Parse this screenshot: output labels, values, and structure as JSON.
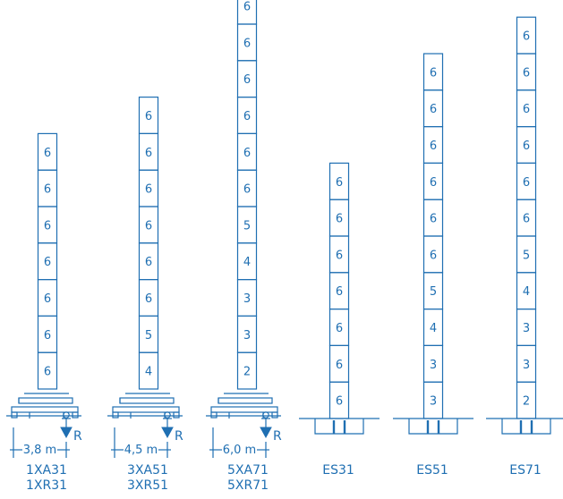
{
  "style": {
    "line_color": "#1f6fb2",
    "background": "#ffffff"
  },
  "towers": [
    {
      "id": "1XA31",
      "names": [
        "1XA31",
        "1XR31"
      ],
      "base": "outrigger",
      "dimension": "3,8  m",
      "reaction": "R",
      "sections": [
        "6",
        "6",
        "6",
        "6",
        "6",
        "6",
        "6"
      ]
    },
    {
      "id": "3XA51",
      "names": [
        "3XA51",
        "3XR51"
      ],
      "base": "outrigger",
      "dimension": "4,5  m",
      "reaction": "R",
      "sections": [
        "6",
        "6",
        "6",
        "6",
        "6",
        "6",
        "5",
        "4"
      ]
    },
    {
      "id": "5XA71",
      "names": [
        "5XA71",
        "5XR71"
      ],
      "base": "outrigger",
      "dimension": "6,0  m",
      "reaction": "R",
      "sections": [
        "6",
        "6",
        "6",
        "6",
        "6",
        "6",
        "6",
        "5",
        "4",
        "3",
        "3",
        "2"
      ]
    },
    {
      "id": "ES31",
      "names": [
        "ES31"
      ],
      "base": "embedded",
      "sections": [
        "6",
        "6",
        "6",
        "6",
        "6",
        "6",
        "6"
      ]
    },
    {
      "id": "ES51",
      "names": [
        "ES51"
      ],
      "base": "embedded",
      "sections": [
        "6",
        "6",
        "6",
        "6",
        "6",
        "6",
        "5",
        "4",
        "3",
        "3"
      ]
    },
    {
      "id": "ES71",
      "names": [
        "ES71"
      ],
      "base": "embedded",
      "sections": [
        "6",
        "6",
        "6",
        "6",
        "6",
        "6",
        "5",
        "4",
        "3",
        "3",
        "2"
      ]
    }
  ]
}
